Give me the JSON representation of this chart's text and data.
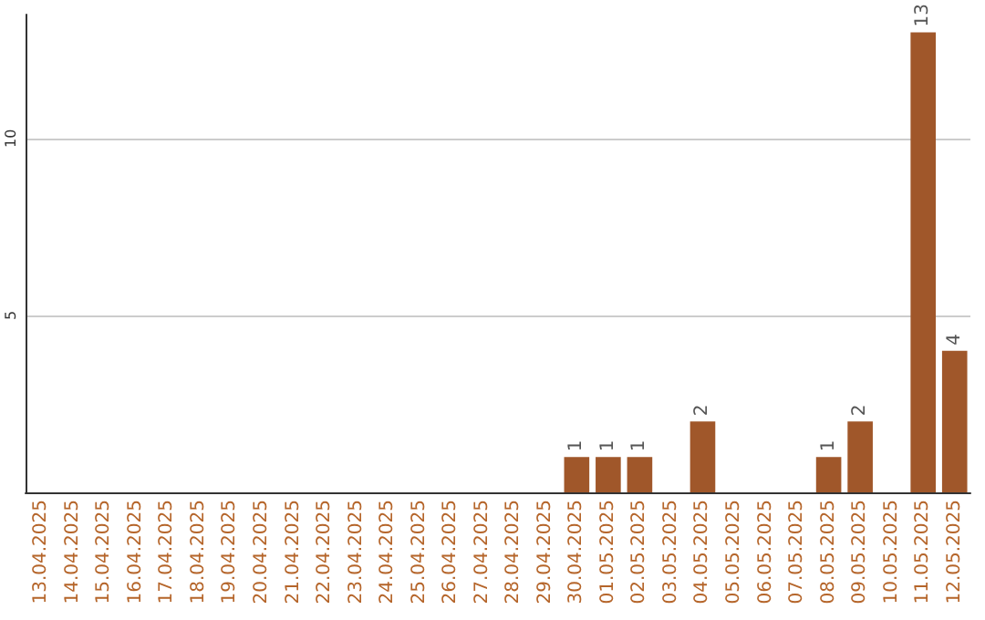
{
  "chart_data": {
    "type": "bar",
    "categories": [
      "13.04.2025",
      "14.04.2025",
      "15.04.2025",
      "16.04.2025",
      "17.04.2025",
      "18.04.2025",
      "19.04.2025",
      "20.04.2025",
      "21.04.2025",
      "22.04.2025",
      "23.04.2025",
      "24.04.2025",
      "25.04.2025",
      "26.04.2025",
      "27.04.2025",
      "28.04.2025",
      "29.04.2025",
      "30.04.2025",
      "01.05.2025",
      "02.05.2025",
      "03.05.2025",
      "04.05.2025",
      "05.05.2025",
      "06.05.2025",
      "07.05.2025",
      "08.05.2025",
      "09.05.2025",
      "10.05.2025",
      "11.05.2025",
      "12.05.2025"
    ],
    "values": [
      0,
      0,
      0,
      0,
      0,
      0,
      0,
      0,
      0,
      0,
      0,
      0,
      0,
      0,
      0,
      0,
      0,
      1,
      1,
      1,
      0,
      2,
      0,
      0,
      0,
      1,
      2,
      0,
      13,
      4
    ],
    "value_labels": [
      null,
      null,
      null,
      null,
      null,
      null,
      null,
      null,
      null,
      null,
      null,
      null,
      null,
      null,
      null,
      null,
      null,
      "1",
      "1",
      "1",
      null,
      "2",
      null,
      null,
      null,
      "1",
      "2",
      null,
      "13",
      "4"
    ],
    "color": "#a0572a",
    "ylim": [
      0,
      13.5
    ],
    "yticks": [
      {
        "value": 0,
        "label": null
      },
      5,
      10
    ],
    "grid": "y"
  }
}
